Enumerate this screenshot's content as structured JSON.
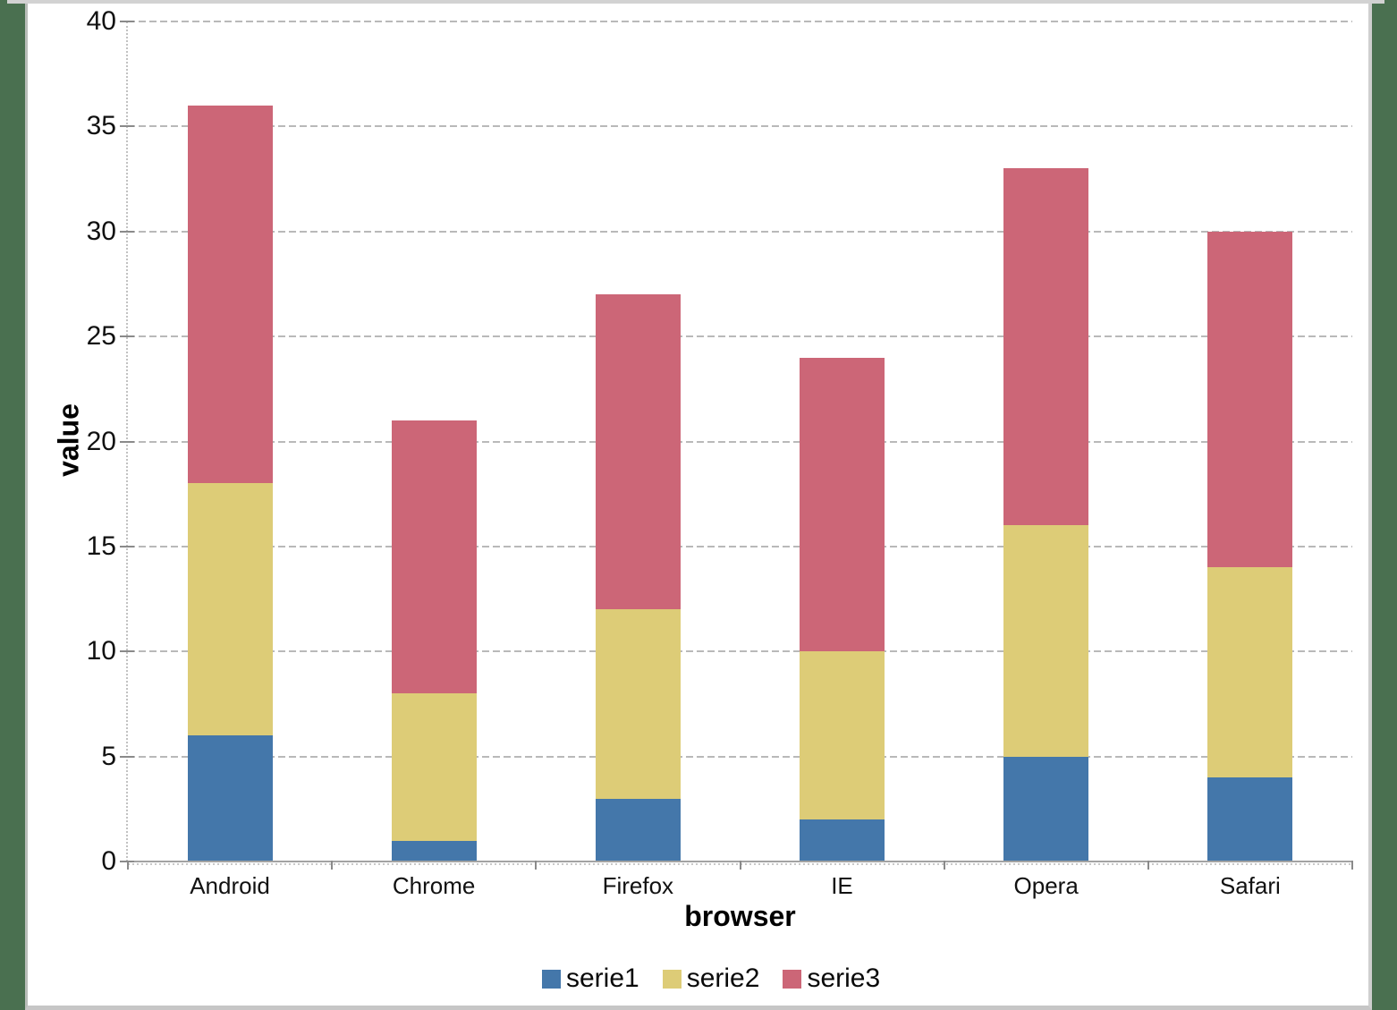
{
  "chart_data": {
    "type": "bar",
    "stacked": true,
    "title": "",
    "xlabel": "browser",
    "ylabel": "value",
    "categories": [
      "Android",
      "Chrome",
      "Firefox",
      "IE",
      "Opera",
      "Safari"
    ],
    "series": [
      {
        "name": "serie1",
        "color": "#4477AA",
        "values": [
          6,
          1,
          3,
          2,
          5,
          4
        ]
      },
      {
        "name": "serie2",
        "color": "#DDCC77",
        "values": [
          12,
          7,
          9,
          8,
          11,
          10
        ]
      },
      {
        "name": "serie3",
        "color": "#CC6677",
        "values": [
          18,
          13,
          15,
          14,
          17,
          16
        ]
      }
    ],
    "totals": [
      36,
      21,
      27,
      24,
      33,
      30
    ],
    "ylim": [
      0,
      40
    ],
    "yticks": [
      0,
      5,
      10,
      15,
      20,
      25,
      30,
      35,
      40
    ],
    "grid": "horizontal-dashed",
    "legend_position": "bottom",
    "legend_labels": [
      "serie1",
      "serie2",
      "serie3"
    ]
  },
  "style_colors": {
    "page_background": "#4A7050",
    "panel_background": "#ffffff",
    "panel_border": "#c6c6c6",
    "gridline": "#b9b9b9",
    "axis_line": "#a3a3a3",
    "tick": "#8a8a8a",
    "text": "#111111"
  }
}
